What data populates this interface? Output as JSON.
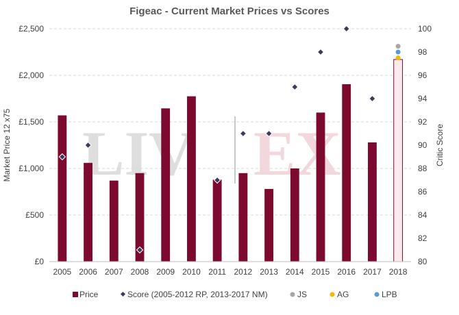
{
  "chart_data": {
    "type": "bar",
    "title": "Figeac - Current Market Prices vs Scores",
    "xlabel": "",
    "ylabel": "Market Price 12 x75",
    "y2label": "Critic Score",
    "watermark": {
      "left": "LIV",
      "right": "EX"
    },
    "categories": [
      "2005",
      "2006",
      "2007",
      "2008",
      "2009",
      "2010",
      "2011",
      "2012",
      "2013",
      "2014",
      "2015",
      "2016",
      "2017",
      "2018"
    ],
    "ylim": [
      0,
      2500
    ],
    "yticks": [
      0,
      500,
      1000,
      1500,
      2000,
      2500
    ],
    "yticklabels": [
      "£0",
      "£500",
      "£1,000",
      "£1,500",
      "£2,000",
      "£2,500"
    ],
    "y2lim": [
      80,
      100
    ],
    "y2ticks": [
      80,
      82,
      84,
      86,
      88,
      90,
      92,
      94,
      96,
      98,
      100
    ],
    "y2ticklabels": [
      "80",
      "82",
      "84",
      "86",
      "88",
      "90",
      "92",
      "94",
      "96",
      "98",
      "100"
    ],
    "grid": true,
    "legend_position": "bottom",
    "series": [
      {
        "name": "Price",
        "type": "bar",
        "axis": "left",
        "color": "#7b0a2e",
        "values": [
          1570,
          1060,
          870,
          950,
          1645,
          1775,
          880,
          950,
          780,
          1000,
          1600,
          1905,
          1280,
          2170
        ],
        "estimated_last": true,
        "estimated_fill": "#fbe9ee"
      },
      {
        "name": "Score (2005-2012 RP, 2013-2017 NM)",
        "type": "scatter",
        "marker": "diamond",
        "axis": "right",
        "color": "#3d3a5a",
        "values": [
          89,
          90,
          null,
          81,
          null,
          null,
          87,
          91,
          91,
          95,
          98,
          100,
          94,
          null
        ]
      },
      {
        "name": "JS",
        "type": "scatter",
        "marker": "circle",
        "axis": "right",
        "color": "#a6a6a6",
        "values": [
          null,
          null,
          null,
          null,
          null,
          null,
          null,
          null,
          null,
          null,
          null,
          null,
          null,
          98.5
        ]
      },
      {
        "name": "AG",
        "type": "scatter",
        "marker": "circle",
        "axis": "right",
        "color": "#f5b800",
        "values": [
          null,
          null,
          null,
          null,
          null,
          null,
          null,
          null,
          null,
          null,
          null,
          null,
          null,
          97.5
        ]
      },
      {
        "name": "LPB",
        "type": "scatter",
        "marker": "circle",
        "axis": "right",
        "color": "#5b9bd5",
        "values": [
          null,
          null,
          null,
          null,
          null,
          null,
          null,
          null,
          null,
          null,
          null,
          null,
          null,
          98
        ]
      }
    ]
  }
}
